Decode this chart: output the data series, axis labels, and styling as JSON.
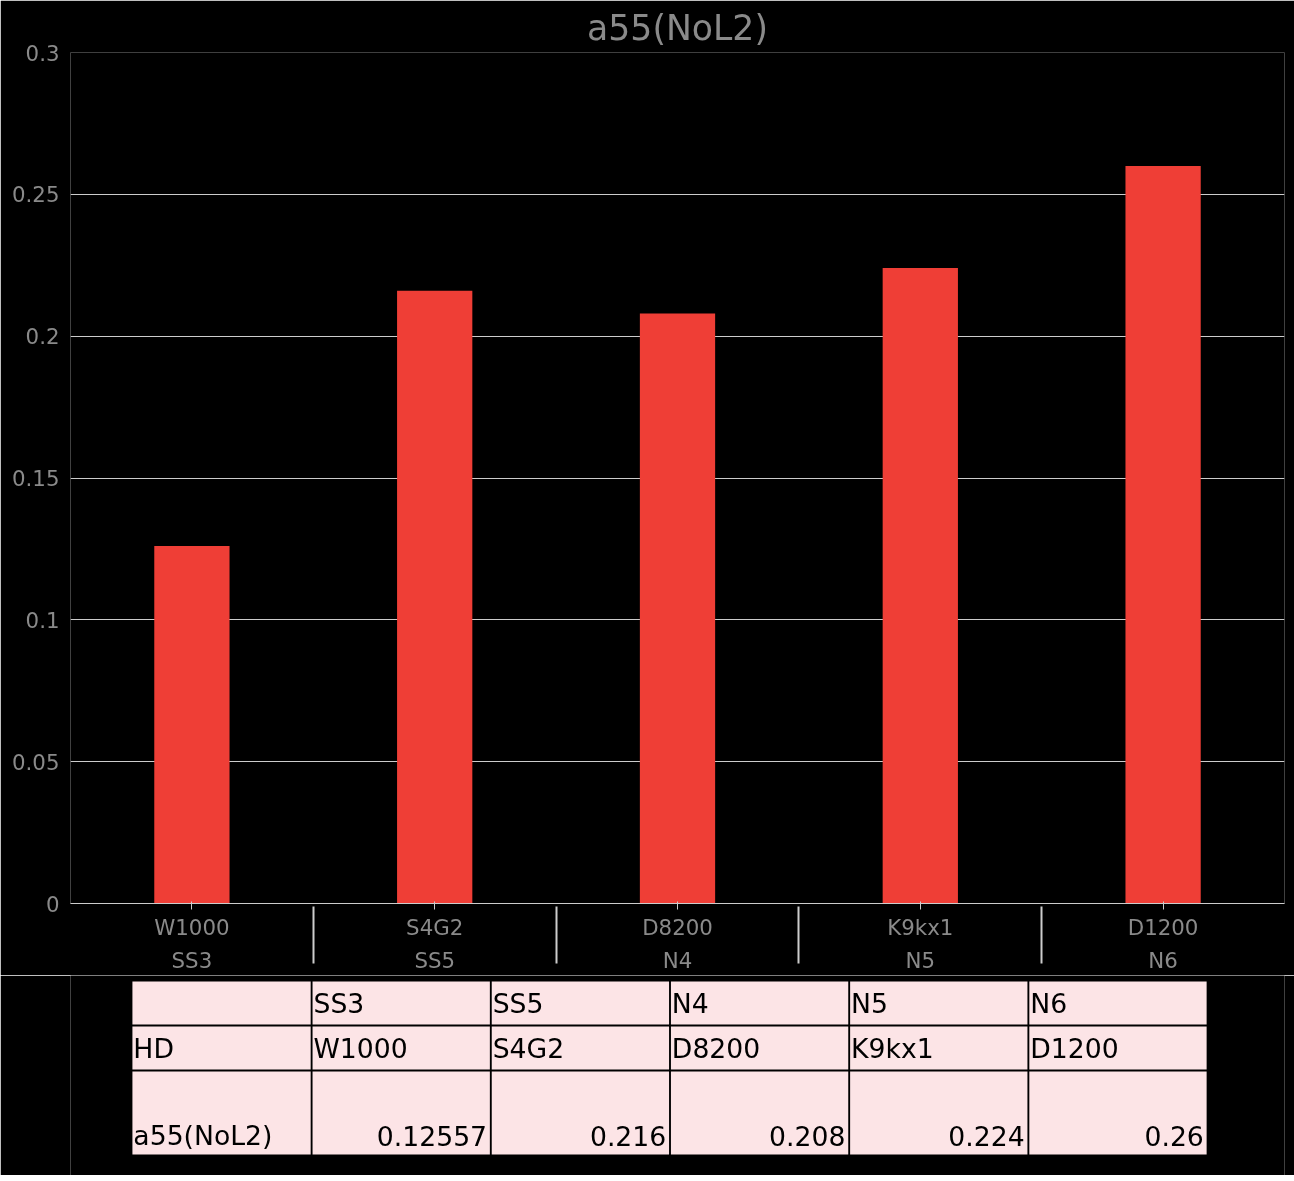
{
  "chart_data": [
    {
      "type": "bar",
      "title": "a55(NoL2)",
      "categories": [
        "W1000\nSS3",
        "S4G2\nSS5",
        "D8200\nN4",
        "K9kx1\nN5",
        "D1200\nN6"
      ],
      "series": [
        {
          "color": "#ef3e36",
          "values": [
            0.126,
            0.216,
            0.208,
            0.224,
            0.26
          ]
        }
      ],
      "ylim": [
        0,
        0.3
      ],
      "yticks": [
        0,
        0.05,
        0.1,
        0.15,
        0.2,
        0.25,
        0.3
      ],
      "grid": "y"
    },
    {
      "type": "other",
      "categories": [
        "SS3\nW1000",
        "SS5\nS4G2",
        "N4\nD8200",
        "N5\nK9kx1",
        "N6\nD1200"
      ],
      "series": [
        {
          "name": "a55(NoL2)",
          "values": [
            0.12557,
            0.216,
            0.208,
            0.224,
            0.26
          ]
        }
      ],
      "data_labels": true,
      "annotations": [
        "HD"
      ]
    }
  ]
}
